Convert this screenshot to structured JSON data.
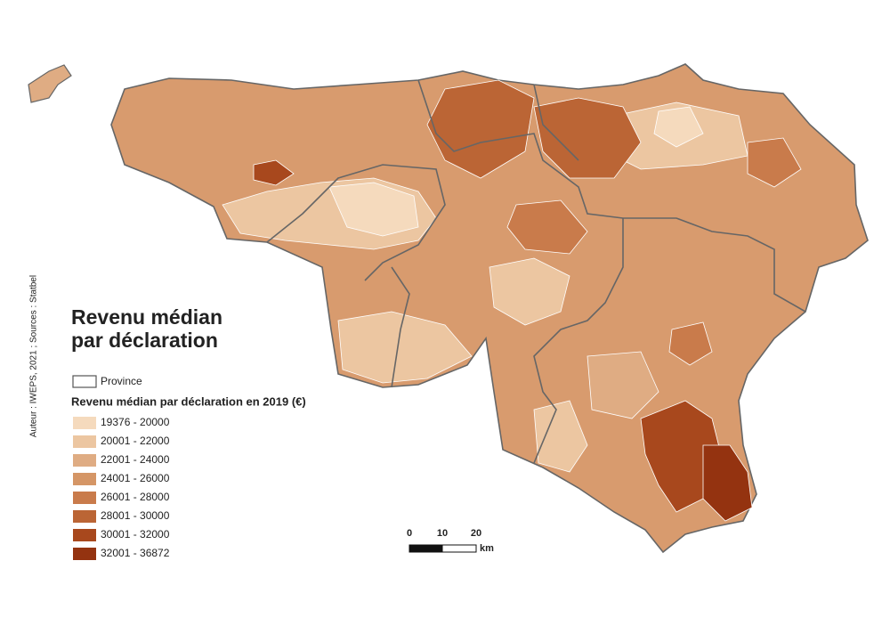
{
  "title": [
    "Revenu médian",
    "par déclaration"
  ],
  "credit": "Auteur : IWEPS, 2021 ; Sources : Statbel",
  "legend": {
    "province": "Province",
    "title": "Revenu médian par déclaration en 2019 (€)",
    "classes": [
      {
        "label": "19376 - 20000",
        "color": "#f5dabd"
      },
      {
        "label": "20001 - 22000",
        "color": "#ecc6a1"
      },
      {
        "label": "22001 - 24000",
        "color": "#dfac83"
      },
      {
        "label": "24001 - 26000",
        "color": "#d59666"
      },
      {
        "label": "26001 - 28000",
        "color": "#c97b4b"
      },
      {
        "label": "28001 - 30000",
        "color": "#bb6535"
      },
      {
        "label": "30001 - 32000",
        "color": "#a8481d"
      },
      {
        "label": "32001 - 36872",
        "color": "#943310"
      }
    ]
  },
  "scale_bar": {
    "ticks": [
      "0",
      "10",
      "20"
    ],
    "unit": "km"
  }
}
